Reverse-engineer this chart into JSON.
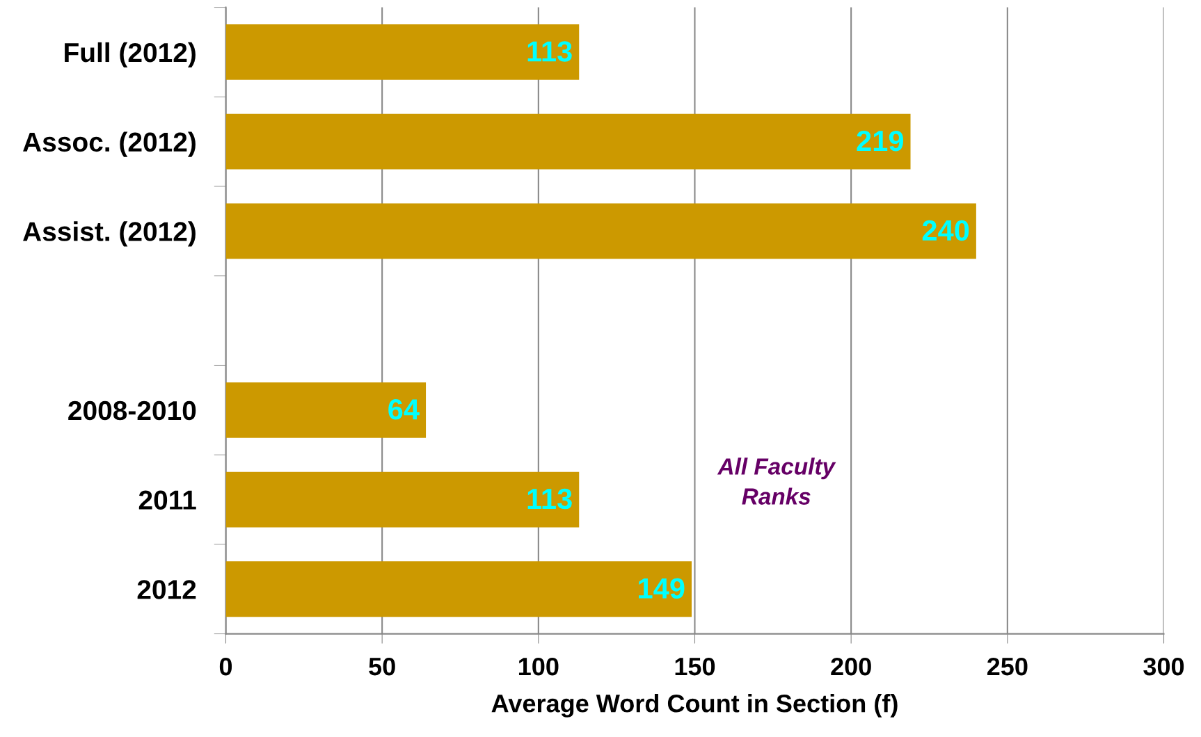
{
  "chart_data": {
    "type": "bar",
    "orientation": "horizontal",
    "xlabel": "Average Word Count in Section (f)",
    "categories": [
      "Full (2012)",
      "Assoc. (2012)",
      "Assist. (2012)",
      null,
      "2008-2010",
      "2011",
      "2012"
    ],
    "values": [
      113,
      219,
      240,
      null,
      64,
      113,
      149
    ],
    "color": "#cc9900",
    "data_labels": true,
    "xlim": [
      0,
      300
    ],
    "xticks": [
      0,
      50,
      100,
      150,
      200,
      250,
      300
    ],
    "grid": "x",
    "annotations": [
      "All Faculty\nRanks"
    ]
  }
}
